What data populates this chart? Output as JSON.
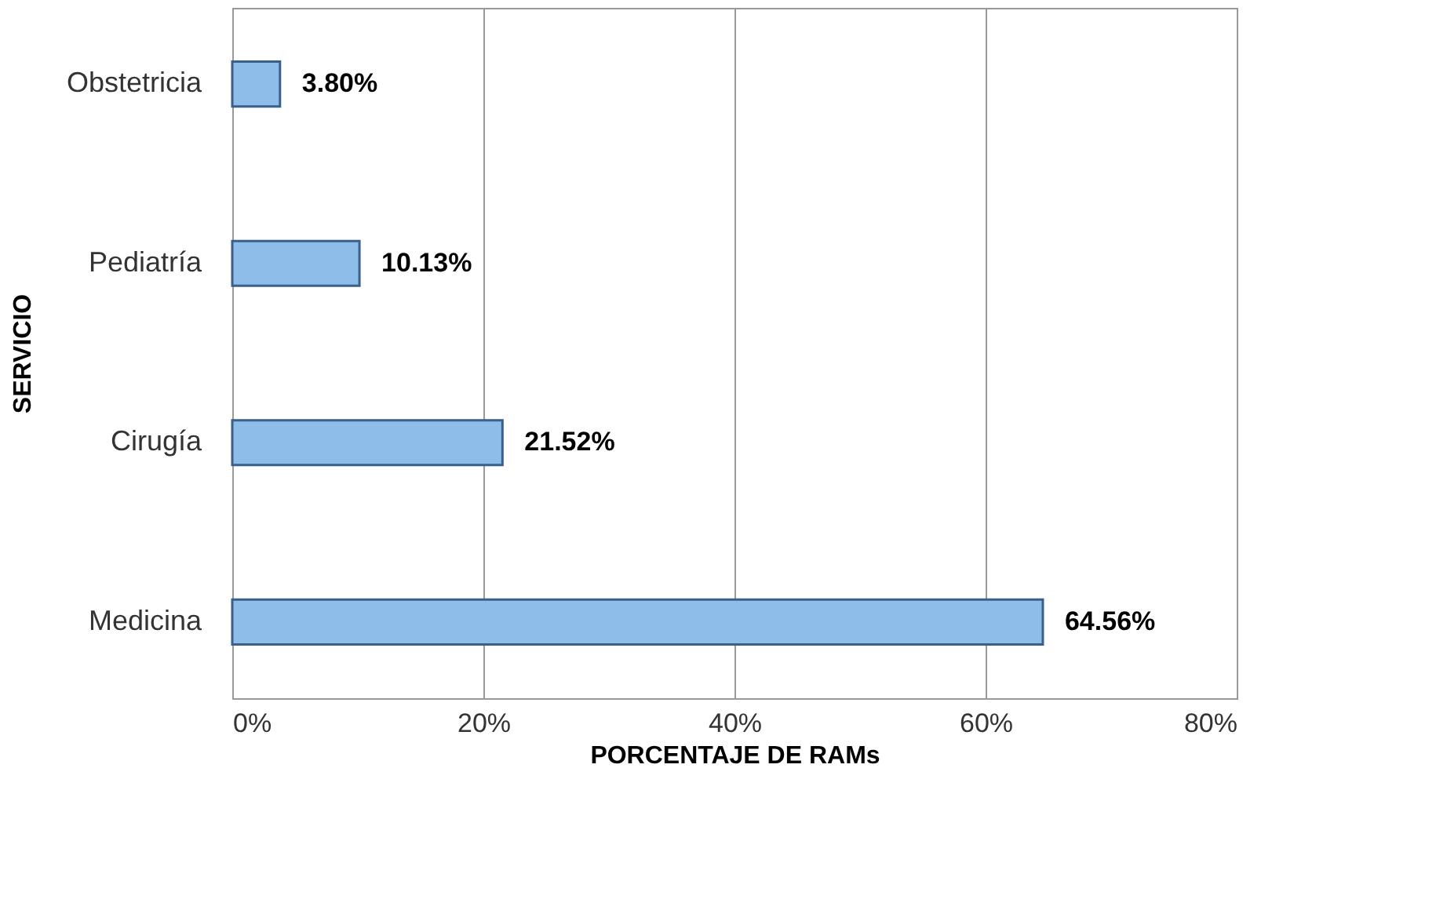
{
  "chart_data": {
    "type": "bar",
    "orientation": "horizontal",
    "categories": [
      "Obstetricia",
      "Pediatría",
      "Cirugía",
      "Medicina"
    ],
    "values": [
      3.8,
      10.13,
      21.52,
      64.56
    ],
    "value_labels": [
      "3.80%",
      "10.13%",
      "21.52%",
      "64.56%"
    ],
    "color": "#8fbde9",
    "xlabel": "PORCENTAJE DE RAMs",
    "ylabel": "SERVICIO",
    "xlim": [
      0,
      80
    ],
    "xticks": [
      {
        "value": 0,
        "label": "0%"
      },
      {
        "value": 20,
        "label": "20%"
      },
      {
        "value": 40,
        "label": "40%"
      },
      {
        "value": 60,
        "label": "60%"
      },
      {
        "value": 80,
        "label": "80%"
      }
    ],
    "grid": "x"
  }
}
